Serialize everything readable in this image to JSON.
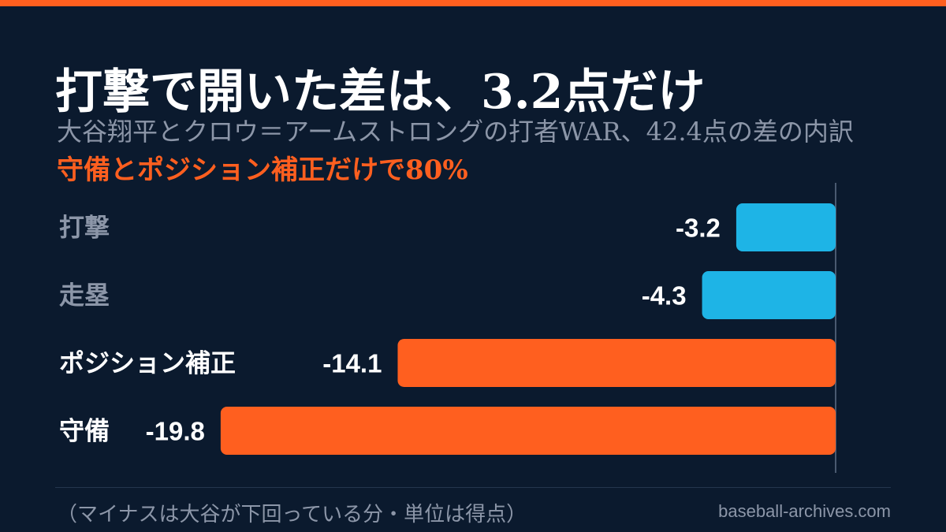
{
  "header": {
    "title": "打撃で開いた差は、3.2点だけ",
    "subtitle": "大谷翔平とクロウ＝アームストロングの打者WAR、42.4点の差の内訳",
    "highlight": "守備とポジション補正だけで80%"
  },
  "footer": {
    "note": "（マイナスは大谷が下回っている分・単位は得点）",
    "source": "baseball-archives.com"
  },
  "colors": {
    "background": "#0b1a2e",
    "accent": "#ff5f1f",
    "secondary": "#1eb4e6",
    "muted_text": "#8c96a8"
  },
  "chart_data": {
    "type": "bar",
    "orientation": "horizontal",
    "categories": [
      "打撃",
      "走塁",
      "ポジション補正",
      "守備"
    ],
    "values": [
      -3.2,
      -4.3,
      -14.1,
      -19.8
    ],
    "value_labels": [
      "-3.2",
      "-4.3",
      "-14.1",
      "-19.8"
    ],
    "highlighted": [
      false,
      false,
      true,
      true
    ],
    "xlim": [
      -22,
      0
    ]
  }
}
